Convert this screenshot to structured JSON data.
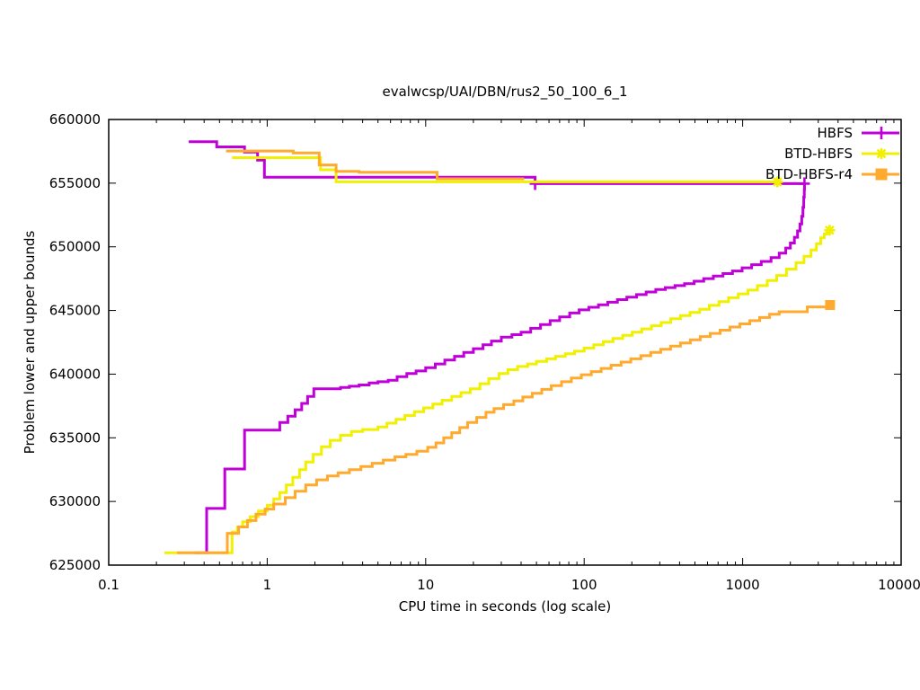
{
  "title": "evalwcsp/UAI/DBN/rus2_50_100_6_1",
  "axes": {
    "xlabel": "CPU time in seconds (log scale)",
    "ylabel": "Problem lower and upper bounds",
    "x_scale": "log",
    "x_ticks": [
      {
        "v": 0.1,
        "label": "0.1"
      },
      {
        "v": 1,
        "label": "1"
      },
      {
        "v": 10,
        "label": "10"
      },
      {
        "v": 100,
        "label": "100"
      },
      {
        "v": 1000,
        "label": "1000"
      },
      {
        "v": 10000,
        "label": "10000"
      }
    ],
    "y_ticks": [
      {
        "v": 625000,
        "label": "625000"
      },
      {
        "v": 630000,
        "label": "630000"
      },
      {
        "v": 635000,
        "label": "635000"
      },
      {
        "v": 640000,
        "label": "640000"
      },
      {
        "v": 645000,
        "label": "645000"
      },
      {
        "v": 650000,
        "label": "650000"
      },
      {
        "v": 655000,
        "label": "655000"
      },
      {
        "v": 660000,
        "label": "660000"
      }
    ]
  },
  "chart_data": {
    "type": "line",
    "title": "evalwcsp/UAI/DBN/rus2_50_100_6_1",
    "xlabel": "CPU time in seconds (log scale)",
    "ylabel": "Problem lower and upper bounds",
    "x_scale": "log",
    "xlim": [
      0.1,
      10000
    ],
    "ylim": [
      625000,
      660000
    ],
    "grid": false,
    "legend_position": "top-right-inside",
    "note": "Each solver has two anytime step curves: a decreasing upper bound and an increasing lower bound; points are [cpu_seconds, bound_value].",
    "series": [
      {
        "name": "HBFS",
        "color": "#bf00d9",
        "marker": "plus",
        "bounds": [
          {
            "role": "upper",
            "points": [
              [
                0.32,
                658250
              ],
              [
                0.48,
                657850
              ],
              [
                0.72,
                657440
              ],
              [
                0.87,
                656800
              ],
              [
                0.96,
                655460
              ],
              [
                49,
                654960
              ],
              [
                2455,
                654960
              ]
            ]
          },
          {
            "role": "lower",
            "points": [
              [
                0.35,
                625970
              ],
              [
                0.415,
                629450
              ],
              [
                0.54,
                632550
              ],
              [
                0.72,
                635600
              ],
              [
                1.2,
                636200
              ],
              [
                1.35,
                636700
              ],
              [
                1.5,
                637200
              ],
              [
                1.65,
                637700
              ],
              [
                1.8,
                638250
              ],
              [
                1.97,
                638850
              ],
              [
                2.9,
                638950
              ],
              [
                3.3,
                639050
              ],
              [
                3.8,
                639150
              ],
              [
                4.4,
                639300
              ],
              [
                5.0,
                639400
              ],
              [
                5.8,
                639520
              ],
              [
                6.6,
                639800
              ],
              [
                7.6,
                640050
              ],
              [
                8.7,
                640250
              ],
              [
                10,
                640500
              ],
              [
                11.5,
                640800
              ],
              [
                13.2,
                641100
              ],
              [
                15.2,
                641400
              ],
              [
                17.4,
                641700
              ],
              [
                20,
                642000
              ],
              [
                23,
                642300
              ],
              [
                26,
                642600
              ],
              [
                30,
                642900
              ],
              [
                35,
                643100
              ],
              [
                40,
                643300
              ],
              [
                46,
                643600
              ],
              [
                53,
                643900
              ],
              [
                61,
                644200
              ],
              [
                70,
                644500
              ],
              [
                81,
                644800
              ],
              [
                93,
                645050
              ],
              [
                107,
                645250
              ],
              [
                123,
                645450
              ],
              [
                141,
                645650
              ],
              [
                162,
                645850
              ],
              [
                186,
                646050
              ],
              [
                214,
                646250
              ],
              [
                246,
                646450
              ],
              [
                283,
                646650
              ],
              [
                325,
                646800
              ],
              [
                374,
                646950
              ],
              [
                430,
                647100
              ],
              [
                494,
                647300
              ],
              [
                568,
                647500
              ],
              [
                653,
                647700
              ],
              [
                751,
                647900
              ],
              [
                863,
                648100
              ],
              [
                992,
                648350
              ],
              [
                1140,
                648600
              ],
              [
                1310,
                648850
              ],
              [
                1510,
                649150
              ],
              [
                1700,
                649500
              ],
              [
                1870,
                649900
              ],
              [
                2000,
                650300
              ],
              [
                2120,
                650750
              ],
              [
                2220,
                651250
              ],
              [
                2300,
                651800
              ],
              [
                2360,
                652400
              ],
              [
                2400,
                653100
              ],
              [
                2430,
                653900
              ],
              [
                2448,
                654500
              ],
              [
                2455,
                654960
              ]
            ]
          }
        ],
        "marker_points": [
          [
            49,
            654960
          ],
          [
            2455,
            654960
          ]
        ]
      },
      {
        "name": "BTD-HBFS",
        "color": "#f0f000",
        "marker": "star",
        "bounds": [
          {
            "role": "upper",
            "points": [
              [
                0.6,
                657000
              ],
              [
                2.17,
                656050
              ],
              [
                2.72,
                655100
              ],
              [
                1660,
                655100
              ]
            ]
          },
          {
            "role": "lower",
            "points": [
              [
                0.225,
                625970
              ],
              [
                0.6,
                627600
              ],
              [
                0.65,
                628000
              ],
              [
                0.7,
                628400
              ],
              [
                0.78,
                628800
              ],
              [
                0.88,
                629250
              ],
              [
                1.0,
                629700
              ],
              [
                1.1,
                630200
              ],
              [
                1.2,
                630700
              ],
              [
                1.32,
                631300
              ],
              [
                1.45,
                631900
              ],
              [
                1.6,
                632500
              ],
              [
                1.75,
                633100
              ],
              [
                1.95,
                633700
              ],
              [
                2.2,
                634300
              ],
              [
                2.5,
                634800
              ],
              [
                2.9,
                635200
              ],
              [
                3.4,
                635500
              ],
              [
                4.0,
                635650
              ],
              [
                5.0,
                635850
              ],
              [
                5.7,
                636150
              ],
              [
                6.5,
                636450
              ],
              [
                7.4,
                636750
              ],
              [
                8.5,
                637050
              ],
              [
                9.7,
                637350
              ],
              [
                11.1,
                637650
              ],
              [
                12.7,
                637950
              ],
              [
                14.6,
                638250
              ],
              [
                16.7,
                638550
              ],
              [
                19.1,
                638850
              ],
              [
                22,
                639250
              ],
              [
                25,
                639650
              ],
              [
                29,
                640050
              ],
              [
                33,
                640350
              ],
              [
                38,
                640600
              ],
              [
                44,
                640800
              ],
              [
                50,
                641000
              ],
              [
                58,
                641200
              ],
              [
                66,
                641400
              ],
              [
                76,
                641600
              ],
              [
                87,
                641800
              ],
              [
                100,
                642050
              ],
              [
                115,
                642300
              ],
              [
                132,
                642550
              ],
              [
                152,
                642800
              ],
              [
                175,
                643050
              ],
              [
                201,
                643300
              ],
              [
                231,
                643550
              ],
              [
                266,
                643800
              ],
              [
                306,
                644050
              ],
              [
                352,
                644350
              ],
              [
                405,
                644600
              ],
              [
                466,
                644850
              ],
              [
                536,
                645100
              ],
              [
                616,
                645400
              ],
              [
                709,
                645700
              ],
              [
                815,
                646000
              ],
              [
                938,
                646300
              ],
              [
                1080,
                646600
              ],
              [
                1240,
                646950
              ],
              [
                1430,
                647350
              ],
              [
                1640,
                647750
              ],
              [
                1890,
                648250
              ],
              [
                2170,
                648750
              ],
              [
                2440,
                649250
              ],
              [
                2700,
                649750
              ],
              [
                2920,
                650250
              ],
              [
                3110,
                650700
              ],
              [
                3270,
                651000
              ],
              [
                3400,
                651150
              ],
              [
                3540,
                651300
              ]
            ]
          }
        ],
        "marker_points": [
          [
            1660,
            655100
          ],
          [
            3540,
            651300
          ]
        ]
      },
      {
        "name": "BTD-HBFS-r4",
        "color": "#ffaa2e",
        "marker": "square",
        "bounds": [
          {
            "role": "upper",
            "points": [
              [
                0.55,
                657520
              ],
              [
                1.46,
                657370
              ],
              [
                2.13,
                656430
              ],
              [
                2.72,
                655930
              ],
              [
                3.8,
                655860
              ],
              [
                11.8,
                655340
              ],
              [
                41.8,
                655340
              ]
            ]
          },
          {
            "role": "lower",
            "points": [
              [
                0.27,
                625970
              ],
              [
                0.56,
                627500
              ],
              [
                0.66,
                628000
              ],
              [
                0.75,
                628500
              ],
              [
                0.85,
                629000
              ],
              [
                0.97,
                629400
              ],
              [
                1.1,
                629800
              ],
              [
                1.3,
                630300
              ],
              [
                1.5,
                630800
              ],
              [
                1.75,
                631300
              ],
              [
                2.05,
                631700
              ],
              [
                2.4,
                632000
              ],
              [
                2.8,
                632250
              ],
              [
                3.3,
                632500
              ],
              [
                3.9,
                632750
              ],
              [
                4.6,
                633000
              ],
              [
                5.4,
                633250
              ],
              [
                6.4,
                633500
              ],
              [
                7.5,
                633700
              ],
              [
                8.8,
                633950
              ],
              [
                10.3,
                634250
              ],
              [
                11.6,
                634600
              ],
              [
                13,
                635000
              ],
              [
                14.6,
                635400
              ],
              [
                16.4,
                635800
              ],
              [
                18.4,
                636200
              ],
              [
                21,
                636600
              ],
              [
                24,
                637000
              ],
              [
                27,
                637300
              ],
              [
                31,
                637600
              ],
              [
                36,
                637900
              ],
              [
                41,
                638200
              ],
              [
                47,
                638500
              ],
              [
                54,
                638800
              ],
              [
                62,
                639100
              ],
              [
                72,
                639400
              ],
              [
                83,
                639700
              ],
              [
                96,
                639950
              ],
              [
                111,
                640200
              ],
              [
                128,
                640450
              ],
              [
                148,
                640700
              ],
              [
                171,
                640950
              ],
              [
                197,
                641200
              ],
              [
                228,
                641450
              ],
              [
                263,
                641700
              ],
              [
                304,
                641950
              ],
              [
                351,
                642200
              ],
              [
                405,
                642450
              ],
              [
                468,
                642700
              ],
              [
                540,
                642950
              ],
              [
                624,
                643200
              ],
              [
                721,
                643450
              ],
              [
                832,
                643700
              ],
              [
                960,
                643950
              ],
              [
                1110,
                644200
              ],
              [
                1280,
                644450
              ],
              [
                1480,
                644700
              ],
              [
                1700,
                644900
              ],
              [
                2560,
                645280
              ],
              [
                3560,
                645430
              ]
            ]
          }
        ],
        "marker_points": [
          [
            3560,
            645430
          ]
        ]
      }
    ]
  }
}
